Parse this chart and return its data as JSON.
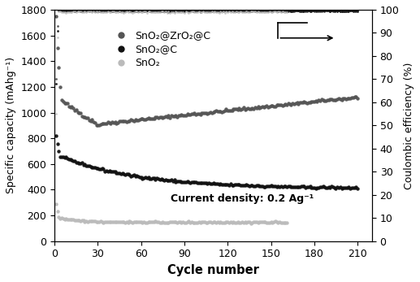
{
  "title": "",
  "xlabel": "Cycle number",
  "ylabel_left": "Specific capacity (mAhg⁻¹)",
  "ylabel_right": "Coulombic efficiency (%)",
  "annotation": "Current density: 0.2 Ag⁻¹",
  "xlim": [
    0,
    220
  ],
  "ylim_left": [
    0,
    1800
  ],
  "ylim_right": [
    0,
    100
  ],
  "xticks": [
    0,
    30,
    60,
    90,
    120,
    150,
    180,
    210
  ],
  "yticks_left": [
    0,
    200,
    400,
    600,
    800,
    1000,
    1200,
    1400,
    1600,
    1800
  ],
  "yticks_right": [
    0,
    10,
    20,
    30,
    40,
    50,
    60,
    70,
    80,
    90,
    100
  ],
  "legend_labels": [
    "SnO₂@ZrO₂@C",
    "SnO₂@C",
    "SnO₂"
  ],
  "colors": {
    "SnO2_ZrO2_C": "#555555",
    "SnO2_C": "#111111",
    "SnO2": "#bbbbbb"
  },
  "figsize": [
    5.17,
    3.47
  ],
  "dpi": 100
}
